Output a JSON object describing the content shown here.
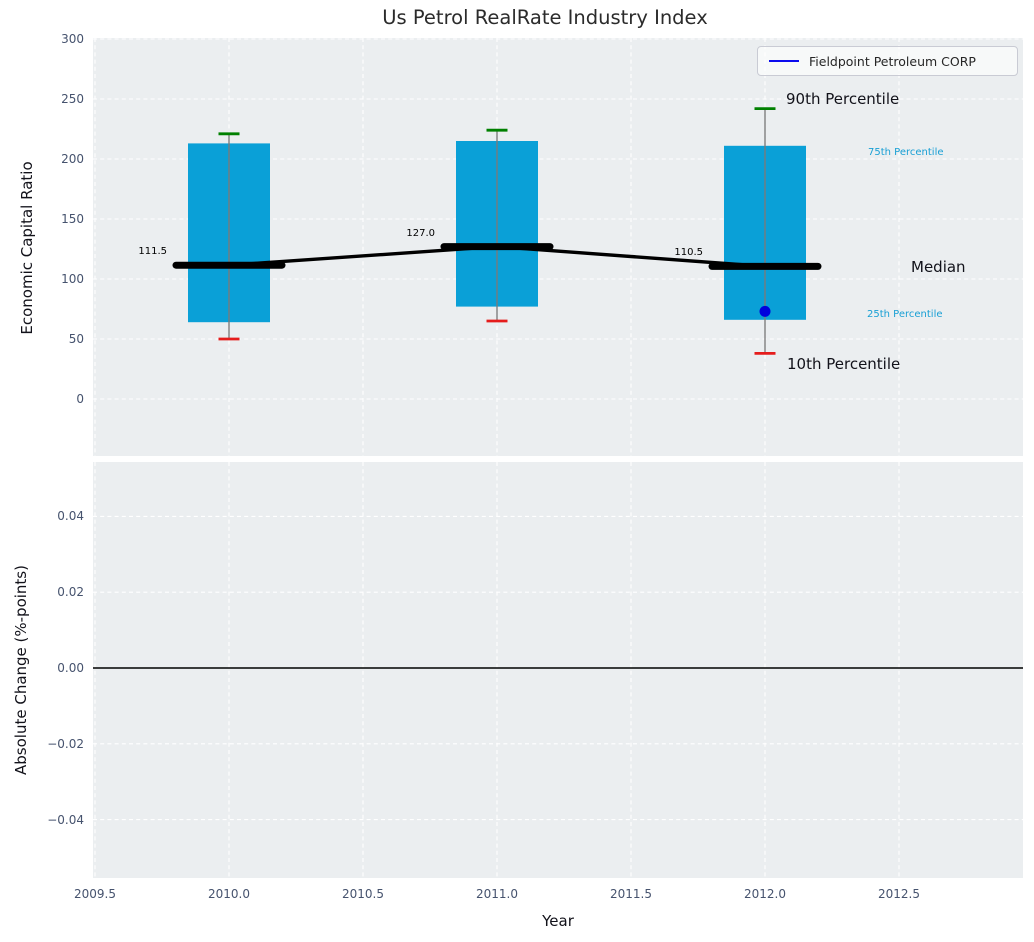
{
  "title": "Us Petrol RealRate Industry Index",
  "legend": {
    "label": "Fieldpoint Petroleum CORP"
  },
  "axes": {
    "x": {
      "label": "Year",
      "tick_labels": [
        "2009.5",
        "2010.0",
        "2010.5",
        "2011.0",
        "2011.5",
        "2012.0",
        "2012.5"
      ],
      "tick_values": [
        2009.5,
        2010.0,
        2010.5,
        2011.0,
        2011.5,
        2012.0,
        2012.5
      ]
    },
    "top": {
      "ylabel": "Economic Capital Ratio",
      "tick_labels": [
        "300",
        "250",
        "200",
        "150",
        "100",
        "50",
        "0"
      ],
      "tick_values": [
        300,
        250,
        200,
        150,
        100,
        50,
        0
      ]
    },
    "bottom": {
      "ylabel": "Absolute Change (%-points)",
      "tick_labels": [
        "0.04",
        "0.02",
        "0.00",
        "−0.02",
        "−0.04"
      ],
      "tick_values": [
        0.04,
        0.02,
        0.0,
        -0.02,
        -0.04
      ]
    }
  },
  "annotations": {
    "p90": "90th Percentile",
    "p75": "75th Percentile",
    "median": "Median",
    "p25": "25th Percentile",
    "p10": "10th Percentile"
  },
  "chart_data": {
    "type": "boxplot",
    "title": "Us Petrol RealRate Industry Index",
    "xlabel": "Year",
    "xlim": [
      2009.49,
      2012.97
    ],
    "xticks": [
      2009.5,
      2010.0,
      2010.5,
      2011.0,
      2011.5,
      2012.0,
      2012.5
    ],
    "grid": true,
    "legend_entries": [
      {
        "name": "Fieldpoint Petroleum CORP",
        "color": "#0b0bee"
      }
    ],
    "panels": [
      {
        "ylabel": "Economic Capital Ratio",
        "ylim": [
          -48,
          301
        ],
        "yticks": [
          0,
          50,
          100,
          150,
          200,
          250,
          300
        ],
        "boxes": [
          {
            "year": 2010,
            "p10": 50,
            "p25": 64,
            "median": 111.5,
            "p75": 213,
            "p90": 221
          },
          {
            "year": 2011,
            "p10": 65,
            "p25": 77,
            "median": 127.0,
            "p75": 215,
            "p90": 224
          },
          {
            "year": 2012,
            "p10": 38,
            "p25": 66,
            "median": 110.5,
            "p75": 211,
            "p90": 242
          }
        ],
        "median_line": {
          "x": [
            2010,
            2011,
            2012
          ],
          "y": [
            111.5,
            127.0,
            110.5
          ]
        },
        "median_labels": [
          "111.5",
          "127.0",
          "110.5"
        ],
        "company_points": [
          {
            "name": "Fieldpoint Petroleum CORP",
            "x": 2012,
            "y": 73
          }
        ]
      },
      {
        "ylabel": "Absolute Change (%-points)",
        "ylim": [
          -0.055,
          0.0545
        ],
        "yticks": [
          -0.04,
          -0.02,
          0.0,
          0.02,
          0.04
        ],
        "zero_line": 0.0,
        "series": []
      }
    ]
  },
  "colors": {
    "box_fill": "#0aa0d7",
    "whisker": "#7a7a7a",
    "cap_top": "#008000",
    "cap_bottom": "#e51c1c",
    "median": "#000000",
    "company_point": "#0000dd",
    "legend_line": "#0b0bee",
    "annotation_accent": "#189fd4",
    "plot_bg": "#ebeef0",
    "grid": "#ffffff",
    "tick_text": "#46536e",
    "label_text": "#12121a"
  }
}
